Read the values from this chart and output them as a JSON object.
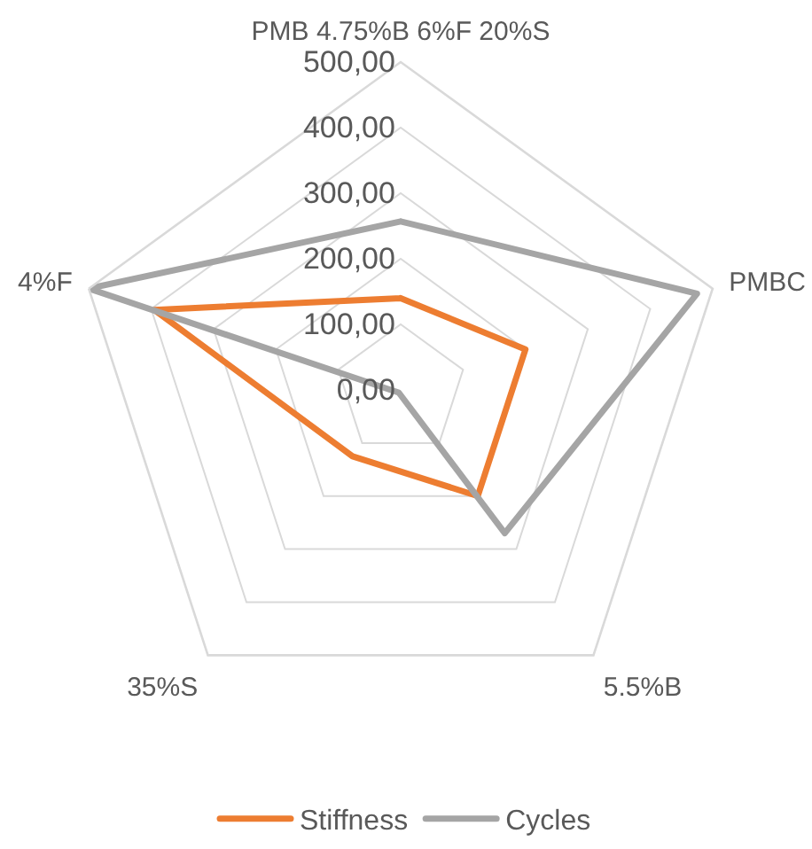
{
  "chart_data": {
    "type": "radar",
    "categories": [
      "PMB 4.75%B 6%F 20%S",
      "PMBC",
      "5.5%B",
      "35%S",
      "4%F"
    ],
    "series": [
      {
        "name": "Stiffness",
        "color": "#ed7d31",
        "values": [
          140,
          200,
          200,
          125,
          395
        ]
      },
      {
        "name": "Cycles",
        "color": "#a5a5a5",
        "values": [
          257,
          475,
          270,
          5,
          500
        ]
      }
    ],
    "ylim": [
      0,
      500
    ],
    "yticks": [
      {
        "value": 0,
        "label": "0,00"
      },
      {
        "value": 100,
        "label": "100,00"
      },
      {
        "value": 200,
        "label": "200,00"
      },
      {
        "value": 300,
        "label": "300,00"
      },
      {
        "value": 400,
        "label": "400,00"
      },
      {
        "value": 500,
        "label": "500,00"
      }
    ],
    "grid": true,
    "legend": "bottom",
    "marker": "none",
    "line_style": "solid"
  }
}
